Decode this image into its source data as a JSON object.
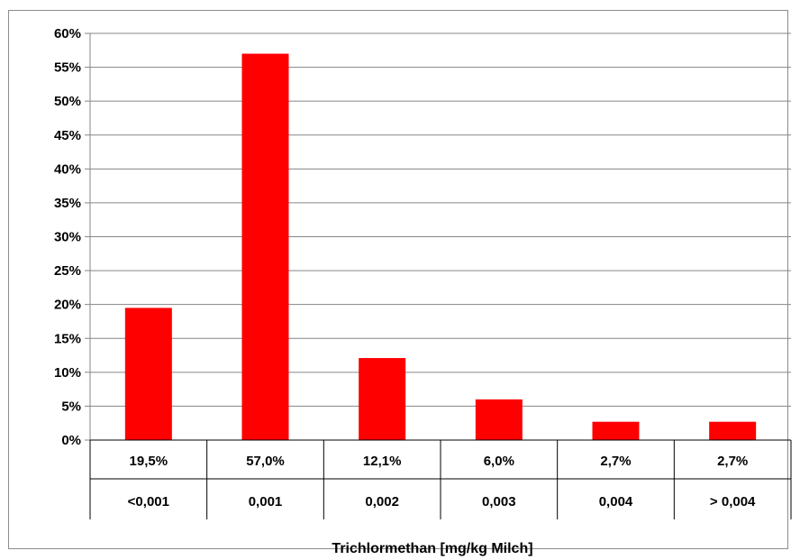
{
  "chart_data": {
    "type": "bar",
    "categories": [
      "<0,001",
      "0,001",
      "0,002",
      "0,003",
      "0,004",
      "> 0,004"
    ],
    "values": [
      19.5,
      57.0,
      12.1,
      6.0,
      2.7,
      2.7
    ],
    "data_labels": [
      "19,5%",
      "57,0%",
      "12,1%",
      "6,0%",
      "2,7%",
      "2,7%"
    ],
    "ylim": [
      0,
      60
    ],
    "yticks": [
      0,
      5,
      10,
      15,
      20,
      25,
      30,
      35,
      40,
      45,
      50,
      55,
      60
    ],
    "ytick_labels": [
      "0%",
      "5%",
      "10%",
      "15%",
      "20%",
      "25%",
      "30%",
      "35%",
      "40%",
      "45%",
      "50%",
      "55%",
      "60%"
    ],
    "xlabel": "Trichlormethan [mg/kg Milch]",
    "ylabel": "",
    "grid": "horizontal",
    "legend": "none",
    "bar_color": "#ff0000",
    "gridline_color": "#868686"
  }
}
